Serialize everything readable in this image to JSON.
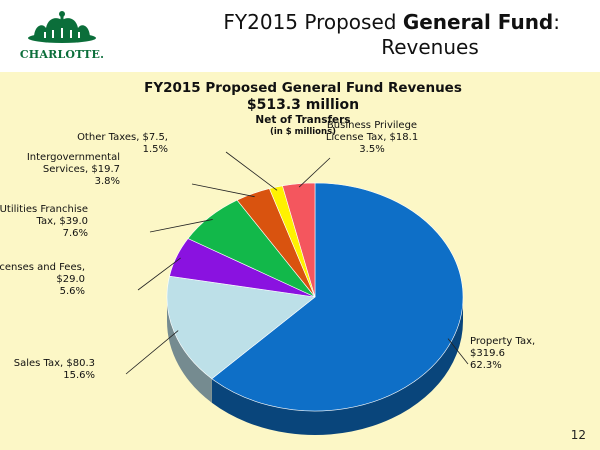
{
  "header": {
    "logo_text": "CHARLOTTE.",
    "title_line1_plain": "FY2015 Proposed ",
    "title_line1_bold": "General Fund",
    "title_line1_end": ":",
    "title_line2": "Revenues"
  },
  "page_number": "12",
  "colors": {
    "panel_bg": "#fcf7c6",
    "brand_green": "#0b6e3a"
  },
  "chart_data": {
    "type": "pie",
    "title": "FY2015 Proposed General Fund Revenues",
    "subtitle": "$513.3 million",
    "subtitle2": "Net of Transfers",
    "subtitle3": "(in $ millions)",
    "legend": "none",
    "slices": [
      {
        "label_lines": [
          "Property Tax,",
          "$319.6",
          "62.3%"
        ],
        "value": 319.6,
        "percent": 62.3,
        "color": "#0e6fc7"
      },
      {
        "label_lines": [
          "Sales Tax, $80.3",
          "15.6%"
        ],
        "value": 80.3,
        "percent": 15.6,
        "color": "#bde0e8"
      },
      {
        "label_lines": [
          "Licenses and Fees,",
          "$29.0",
          "5.6%"
        ],
        "value": 29.0,
        "percent": 5.6,
        "color": "#8a12e0"
      },
      {
        "label_lines": [
          "Utilities Franchise",
          "Tax, $39.0",
          "7.6%"
        ],
        "value": 39.0,
        "percent": 7.6,
        "color": "#12b84a"
      },
      {
        "label_lines": [
          "Intergovernmental",
          "Services, $19.7",
          "3.8%"
        ],
        "value": 19.7,
        "percent": 3.8,
        "color": "#d9530f"
      },
      {
        "label_lines": [
          "Other Taxes, $7.5,",
          "1.5%"
        ],
        "value": 7.5,
        "percent": 1.5,
        "color": "#fff200"
      },
      {
        "label_lines": [
          "Business Privilege",
          "License Tax, $18.1",
          "3.5%"
        ],
        "value": 18.1,
        "percent": 3.5,
        "color": "#f4565e"
      }
    ]
  }
}
